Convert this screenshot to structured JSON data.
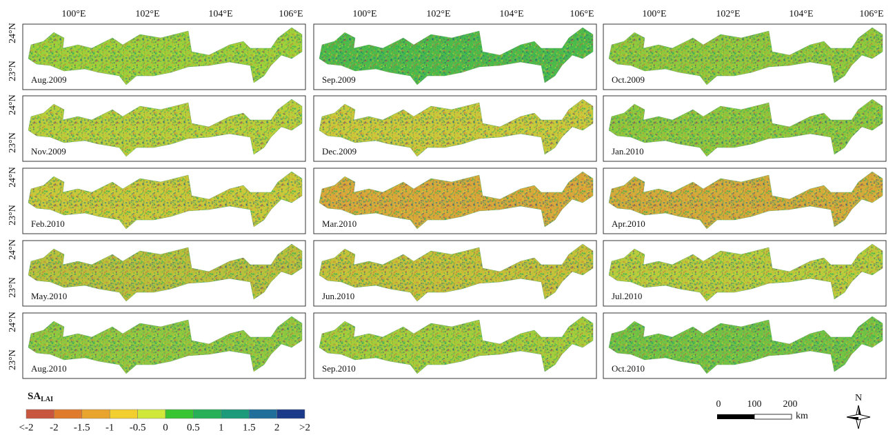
{
  "lon_labels": [
    "100°E",
    "102°E",
    "104°E",
    "106°E"
  ],
  "lat_labels": [
    "24°N",
    "23°N"
  ],
  "panels": [
    {
      "label": "Aug.2009",
      "color": "#9ccf3a"
    },
    {
      "label": "Sep.2009",
      "color": "#4dbb4a"
    },
    {
      "label": "Oct.2009",
      "color": "#8fc83c"
    },
    {
      "label": "Nov.2009",
      "color": "#b8cf3c"
    },
    {
      "label": "Dec.2009",
      "color": "#c9c93c"
    },
    {
      "label": "Jan.2010",
      "color": "#8cc83e"
    },
    {
      "label": "Feb.2010",
      "color": "#c8c83a"
    },
    {
      "label": "Mar.2010",
      "color": "#d9a83a"
    },
    {
      "label": "Apr.2010",
      "color": "#d4aa3a"
    },
    {
      "label": "May.2010",
      "color": "#b7bf3c"
    },
    {
      "label": "Jun.2010",
      "color": "#c5c03a"
    },
    {
      "label": "Jul.2010",
      "color": "#b9cb3c"
    },
    {
      "label": "Aug.2010",
      "color": "#8fc840"
    },
    {
      "label": "Sep.2010",
      "color": "#a2cc3c"
    },
    {
      "label": "Oct.2010",
      "color": "#72c244"
    }
  ],
  "legend": {
    "title": "SA",
    "title_sub": "LAI",
    "colors": [
      "#c8553d",
      "#e07b2c",
      "#e8a42c",
      "#f2cf2e",
      "#cfe83a",
      "#39c432",
      "#27b058",
      "#1d9a7a",
      "#1f6f9a",
      "#1b3a8a"
    ],
    "labels": [
      "<-2",
      "-2",
      "-1.5",
      "-1",
      "-0.5",
      "0",
      "0.5",
      "1",
      "1.5",
      "2",
      ">2"
    ]
  },
  "scale_bar": {
    "labels": [
      "0",
      "100",
      "200"
    ],
    "unit": "km"
  },
  "north": "N"
}
